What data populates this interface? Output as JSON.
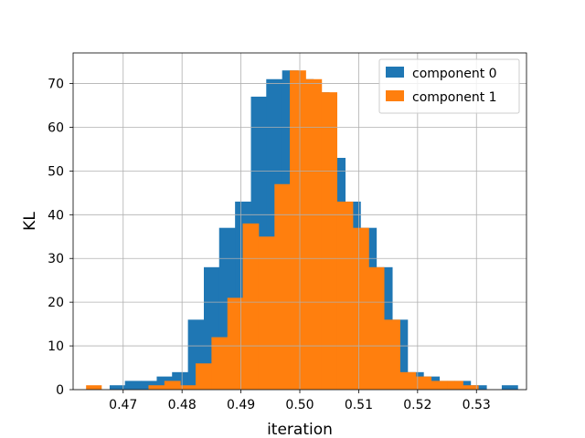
{
  "chart_data": {
    "type": "histogram",
    "xlabel": "iteration",
    "ylabel": "KL",
    "xlim": [
      0.4615,
      0.5385
    ],
    "ylim": [
      0,
      77
    ],
    "xticks": [
      "0.47",
      "0.48",
      "0.49",
      "0.50",
      "0.51",
      "0.52",
      "0.53"
    ],
    "xtick_values": [
      0.47,
      0.48,
      0.49,
      0.5,
      0.51,
      0.52,
      0.53
    ],
    "yticks": [
      "0",
      "10",
      "20",
      "30",
      "40",
      "50",
      "60",
      "70"
    ],
    "ytick_values": [
      0,
      10,
      20,
      30,
      40,
      50,
      60,
      70
    ],
    "grid": true,
    "legend_position": "top-right",
    "series": [
      {
        "name": "component 0",
        "color": "#1f77b4",
        "bins": [
          [
            0.4677,
            0.4703,
            1
          ],
          [
            0.4703,
            0.473,
            2
          ],
          [
            0.473,
            0.4757,
            2
          ],
          [
            0.4757,
            0.4783,
            3
          ],
          [
            0.4783,
            0.481,
            4
          ],
          [
            0.481,
            0.4837,
            16
          ],
          [
            0.4837,
            0.4863,
            28
          ],
          [
            0.4863,
            0.489,
            37
          ],
          [
            0.489,
            0.4917,
            43
          ],
          [
            0.4917,
            0.4943,
            67
          ],
          [
            0.4943,
            0.497,
            71
          ],
          [
            0.497,
            0.4997,
            73
          ],
          [
            0.4997,
            0.5023,
            71
          ],
          [
            0.5023,
            0.505,
            68
          ],
          [
            0.505,
            0.5077,
            53
          ],
          [
            0.5077,
            0.5103,
            43
          ],
          [
            0.5103,
            0.513,
            37
          ],
          [
            0.513,
            0.5157,
            28
          ],
          [
            0.5157,
            0.5183,
            16
          ],
          [
            0.5183,
            0.521,
            4
          ],
          [
            0.521,
            0.5237,
            3
          ],
          [
            0.5237,
            0.5263,
            2
          ],
          [
            0.5263,
            0.529,
            2
          ],
          [
            0.529,
            0.5317,
            1
          ],
          [
            0.5317,
            0.5343,
            0
          ],
          [
            0.5343,
            0.537,
            1
          ]
        ]
      },
      {
        "name": "component 1",
        "color": "#ff7f0e",
        "bins": [
          [
            0.4637,
            0.4663,
            1
          ],
          [
            0.4663,
            0.469,
            0
          ],
          [
            0.469,
            0.4717,
            0
          ],
          [
            0.4717,
            0.4743,
            0
          ],
          [
            0.4743,
            0.477,
            1
          ],
          [
            0.477,
            0.4797,
            2
          ],
          [
            0.4797,
            0.4823,
            1
          ],
          [
            0.4823,
            0.485,
            6
          ],
          [
            0.485,
            0.4877,
            12
          ],
          [
            0.4877,
            0.4903,
            21
          ],
          [
            0.4903,
            0.493,
            38
          ],
          [
            0.493,
            0.4957,
            35
          ],
          [
            0.4957,
            0.4983,
            47
          ],
          [
            0.4983,
            0.501,
            73
          ],
          [
            0.501,
            0.5037,
            71
          ],
          [
            0.5037,
            0.5063,
            68
          ],
          [
            0.5063,
            0.509,
            43
          ],
          [
            0.509,
            0.5117,
            37
          ],
          [
            0.5117,
            0.5143,
            28
          ],
          [
            0.5143,
            0.517,
            16
          ],
          [
            0.517,
            0.5197,
            4
          ],
          [
            0.5197,
            0.5223,
            3
          ],
          [
            0.5223,
            0.525,
            2
          ],
          [
            0.525,
            0.5277,
            2
          ],
          [
            0.5277,
            0.5303,
            1
          ]
        ]
      }
    ]
  }
}
